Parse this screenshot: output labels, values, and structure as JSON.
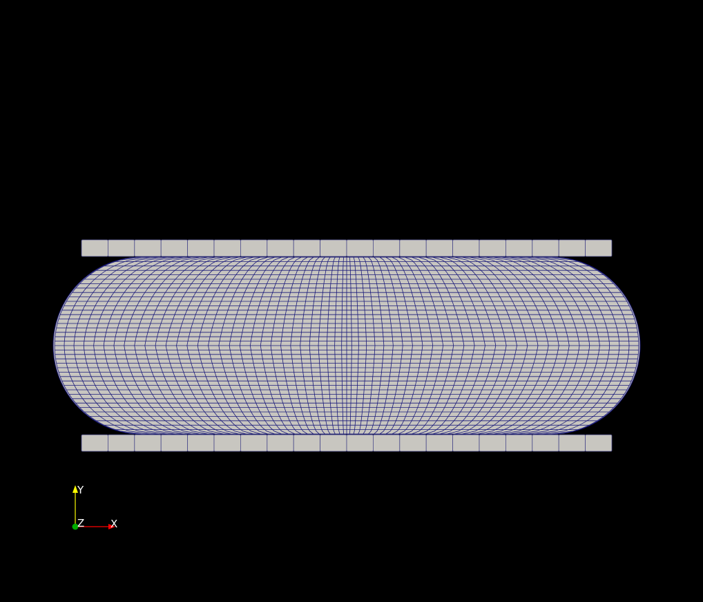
{
  "scene": {
    "background": "#000000",
    "mesh": {
      "fill": "#c8c6c0",
      "edge_color": "#1a1a7a",
      "body": {
        "shape": "stadium",
        "columns": 30,
        "rows": 40
      },
      "top_plate": {
        "blocks": 20
      },
      "bottom_plate": {
        "blocks": 20
      }
    },
    "orientation_axes": {
      "x_label": "X",
      "y_label": "Y",
      "z_label": "Z",
      "x_color": "#ff0000",
      "y_color": "#ffff00",
      "z_color": "#00aa00"
    }
  }
}
